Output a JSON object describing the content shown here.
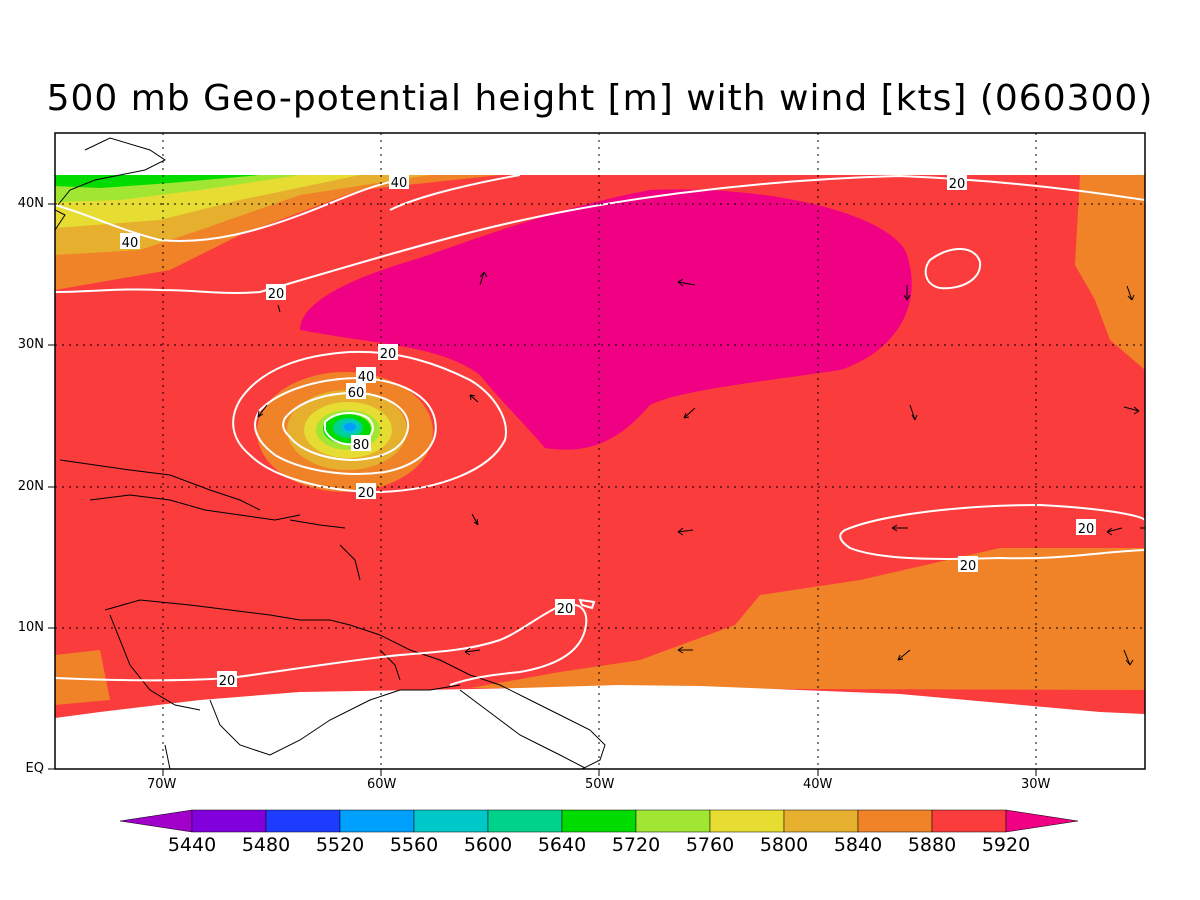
{
  "title": "500 mb Geo-potential height [m] with wind [kts] (060300)",
  "x_ticks": [
    "70W",
    "60W",
    "50W",
    "40W",
    "30W"
  ],
  "y_ticks": [
    "40N",
    "30N",
    "20N",
    "10N",
    "EQ"
  ],
  "colorbar": {
    "labels": [
      "5440",
      "5480",
      "5520",
      "5560",
      "5600",
      "5640",
      "5720",
      "5760",
      "5800",
      "5840",
      "5880",
      "5920"
    ],
    "colors": [
      "#a000c8",
      "#8200dc",
      "#1e3cff",
      "#00a0ff",
      "#00c8c8",
      "#00d28c",
      "#00dc00",
      "#a0e632",
      "#e6dc32",
      "#e6af2d",
      "#f08228",
      "#fa3c3c",
      "#f00082"
    ]
  },
  "wind_labels": [
    {
      "text": "40"
    },
    {
      "text": "40"
    },
    {
      "text": "20"
    },
    {
      "text": "20"
    },
    {
      "text": "40"
    },
    {
      "text": "60"
    },
    {
      "text": "80"
    },
    {
      "text": "20"
    },
    {
      "text": "20"
    },
    {
      "text": "20"
    },
    {
      "text": "20"
    },
    {
      "text": "20"
    },
    {
      "text": "20"
    }
  ],
  "chart_data": {
    "type": "heatmap",
    "title": "500 mb Geo-potential height [m] with wind [kts] (060300)",
    "xlim": [
      "75W",
      "25W"
    ],
    "ylim": [
      "EQ",
      "45N"
    ],
    "x_tick_labels": [
      "70W",
      "60W",
      "50W",
      "40W",
      "30W"
    ],
    "y_tick_labels": [
      "EQ",
      "10N",
      "20N",
      "30N",
      "40N"
    ],
    "field": "500 mb geopotential height (m)",
    "contour_field": "wind speed (kts)",
    "contour_levels_labeled": [
      20,
      40,
      60,
      80
    ],
    "color_levels": [
      5440,
      5480,
      5520,
      5560,
      5600,
      5640,
      5720,
      5760,
      5800,
      5840,
      5880,
      5920
    ],
    "grid": "dotted"
  }
}
